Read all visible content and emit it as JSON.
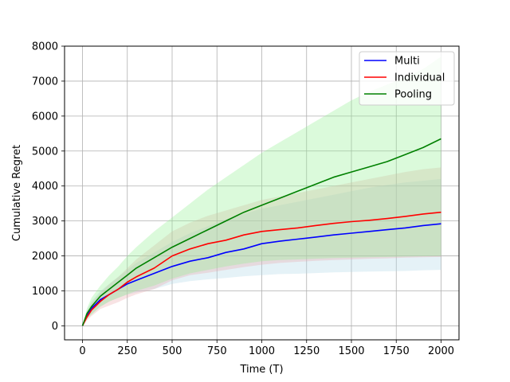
{
  "chart_data": {
    "type": "line",
    "title": "",
    "xlabel": "Time (T)",
    "ylabel": "Cumulative Regret",
    "xlim": [
      -100,
      2100
    ],
    "ylim": [
      -400,
      8000
    ],
    "xticks": [
      0,
      250,
      500,
      750,
      1000,
      1250,
      1500,
      1750,
      2000
    ],
    "yticks": [
      0,
      1000,
      2000,
      3000,
      4000,
      5000,
      6000,
      7000,
      8000
    ],
    "grid": true,
    "legend_position": "top-right",
    "x": [
      0,
      25,
      50,
      100,
      150,
      200,
      250,
      300,
      400,
      500,
      600,
      700,
      800,
      900,
      1000,
      1100,
      1200,
      1300,
      1400,
      1500,
      1600,
      1700,
      1800,
      1900,
      2000
    ],
    "series": [
      {
        "name": "Multi",
        "color": "#0000ff",
        "band_color": "#add8e6",
        "values": [
          0,
          300,
          500,
          750,
          900,
          1050,
          1200,
          1300,
          1500,
          1700,
          1850,
          1950,
          2100,
          2200,
          2350,
          2420,
          2480,
          2540,
          2600,
          2650,
          2700,
          2750,
          2800,
          2870,
          2920
        ],
        "lower": [
          0,
          200,
          350,
          550,
          700,
          800,
          900,
          950,
          1050,
          1200,
          1280,
          1330,
          1370,
          1420,
          1450,
          1480,
          1490,
          1510,
          1530,
          1540,
          1550,
          1560,
          1570,
          1590,
          1600
        ],
        "upper": [
          0,
          450,
          700,
          1000,
          1200,
          1400,
          1600,
          1800,
          2100,
          2400,
          2650,
          2850,
          3050,
          3200,
          3350,
          3450,
          3550,
          3650,
          3750,
          3850,
          3950,
          4030,
          4100,
          4150,
          4200
        ]
      },
      {
        "name": "Individual",
        "color": "#ff0000",
        "band_color": "#e8a8ac",
        "values": [
          0,
          250,
          450,
          700,
          900,
          1050,
          1250,
          1400,
          1650,
          2000,
          2200,
          2350,
          2450,
          2600,
          2700,
          2750,
          2800,
          2870,
          2930,
          2980,
          3020,
          3070,
          3130,
          3200,
          3250
        ],
        "lower": [
          0,
          150,
          280,
          480,
          580,
          680,
          800,
          900,
          1050,
          1300,
          1450,
          1520,
          1600,
          1680,
          1750,
          1800,
          1830,
          1860,
          1880,
          1900,
          1920,
          1930,
          1950,
          1960,
          1970
        ],
        "upper": [
          0,
          400,
          650,
          950,
          1200,
          1400,
          1650,
          1900,
          2300,
          2700,
          2950,
          3150,
          3300,
          3450,
          3600,
          3700,
          3800,
          3900,
          4000,
          4100,
          4200,
          4300,
          4400,
          4480,
          4530
        ]
      },
      {
        "name": "Pooling",
        "color": "#008000",
        "band_color": "#90ee90",
        "values": [
          0,
          350,
          550,
          850,
          1050,
          1250,
          1450,
          1650,
          1950,
          2250,
          2500,
          2750,
          3000,
          3250,
          3450,
          3650,
          3850,
          4050,
          4250,
          4400,
          4550,
          4700,
          4900,
          5100,
          5350
        ],
        "lower": [
          0,
          200,
          320,
          550,
          700,
          800,
          900,
          1000,
          1150,
          1350,
          1500,
          1600,
          1700,
          1780,
          1850,
          1880,
          1900,
          1920,
          1940,
          1950,
          1960,
          1970,
          1980,
          1990,
          2000
        ],
        "upper": [
          0,
          500,
          800,
          1150,
          1450,
          1700,
          2000,
          2250,
          2700,
          3100,
          3500,
          3900,
          4250,
          4600,
          4950,
          5250,
          5550,
          5850,
          6150,
          6450,
          6700,
          6900,
          7100,
          7350,
          7700
        ]
      }
    ]
  }
}
